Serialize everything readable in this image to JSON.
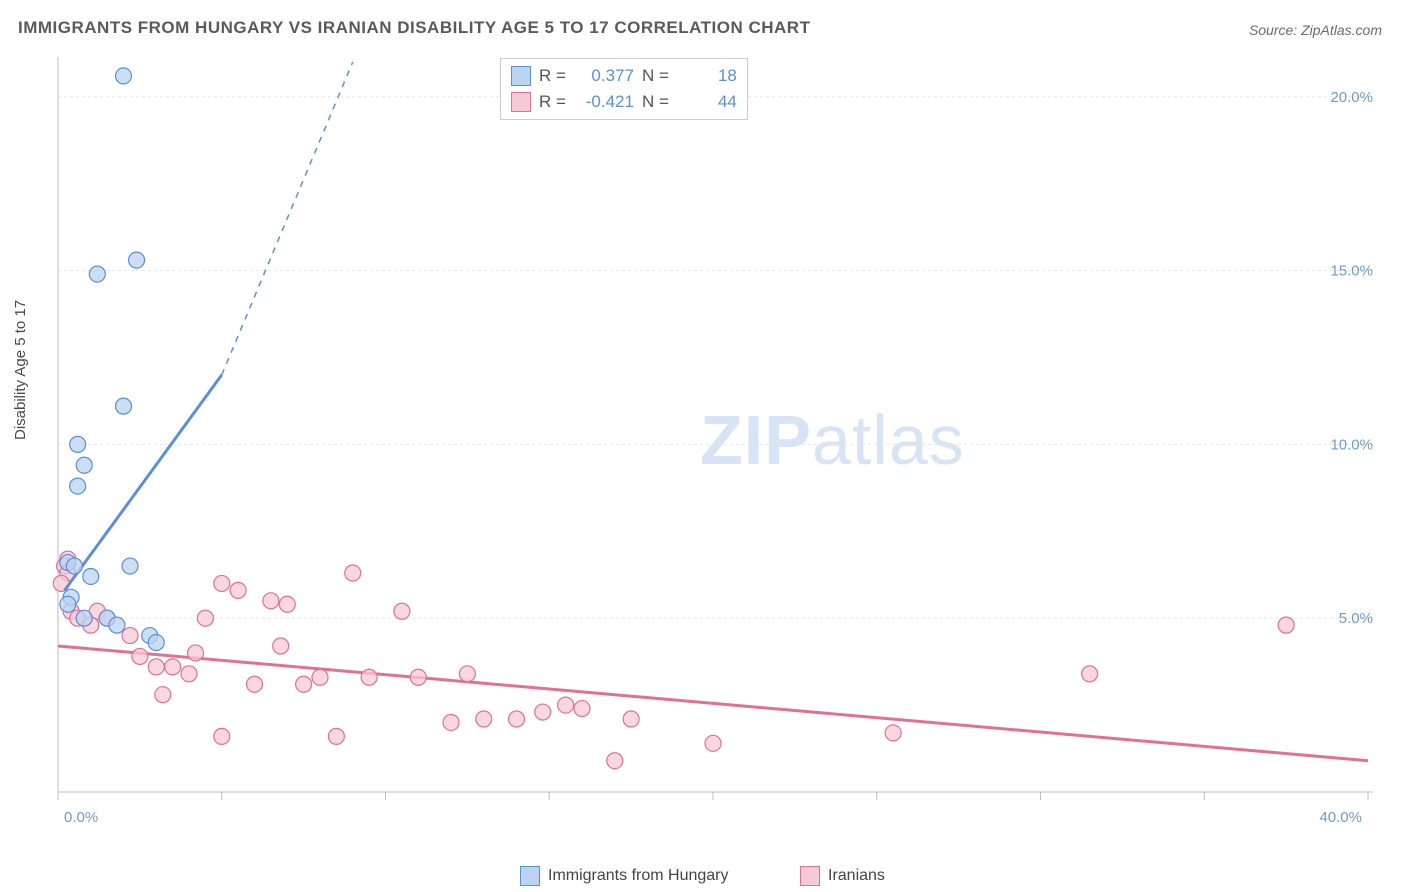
{
  "title": "IMMIGRANTS FROM HUNGARY VS IRANIAN DISABILITY AGE 5 TO 17 CORRELATION CHART",
  "source": "Source: ZipAtlas.com",
  "ylabel": "Disability Age 5 to 17",
  "watermark_bold": "ZIP",
  "watermark_light": "atlas",
  "chart": {
    "type": "scatter",
    "background_color": "#ffffff",
    "grid_color": "#e6e6e6",
    "axis_color": "#bdbdbd",
    "tick_color": "#6b9bd6",
    "xlim": [
      0,
      40
    ],
    "ylim": [
      0,
      21
    ],
    "y_ticks": [
      5,
      10,
      15,
      20
    ],
    "y_tick_labels": [
      "5.0%",
      "10.0%",
      "15.0%",
      "20.0%"
    ],
    "x_ticks": [
      0,
      5,
      10,
      15,
      20,
      25,
      30,
      35,
      40
    ],
    "x_tick_labels_shown": {
      "0": "0.0%",
      "40": "40.0%"
    },
    "marker_radius": 8,
    "marker_stroke_width": 1.2,
    "trend_stroke_width": 3,
    "legend_stats": [
      {
        "swatch_fill": "#b9d3f0",
        "swatch_stroke": "#5b8fd6",
        "r_label": "R =",
        "r": "0.377",
        "n_label": "N =",
        "n": "18"
      },
      {
        "swatch_fill": "#f7c9d6",
        "swatch_stroke": "#e36f92",
        "r_label": "R =",
        "r": "-0.421",
        "n_label": "N =",
        "n": "44"
      }
    ],
    "x_legend": [
      {
        "swatch_fill": "#b9d3f0",
        "swatch_stroke": "#5b8fd6",
        "label": "Immigrants from Hungary"
      },
      {
        "swatch_fill": "#f7c9d6",
        "swatch_stroke": "#e36f92",
        "label": "Iranians"
      }
    ],
    "series": [
      {
        "name": "hungary",
        "fill": "#b9d3f0",
        "stroke": "#5b8fd6",
        "trend": {
          "x1": 0.2,
          "y1": 5.8,
          "x2": 5.0,
          "y2": 12.0,
          "dash_x2": 9.0,
          "dash_y2": 21.0
        },
        "points": [
          [
            2.0,
            20.6
          ],
          [
            2.4,
            15.3
          ],
          [
            1.2,
            14.9
          ],
          [
            2.0,
            11.1
          ],
          [
            0.6,
            10.0
          ],
          [
            0.8,
            9.4
          ],
          [
            0.6,
            8.8
          ],
          [
            0.3,
            6.6
          ],
          [
            0.5,
            6.5
          ],
          [
            2.2,
            6.5
          ],
          [
            1.0,
            6.2
          ],
          [
            0.4,
            5.6
          ],
          [
            0.3,
            5.4
          ],
          [
            1.5,
            5.0
          ],
          [
            0.8,
            5.0
          ],
          [
            1.8,
            4.8
          ],
          [
            2.8,
            4.5
          ],
          [
            3.0,
            4.3
          ]
        ]
      },
      {
        "name": "iranians",
        "fill": "#f7c9d6",
        "stroke": "#e36f92",
        "trend": {
          "x1": 0,
          "y1": 4.2,
          "x2": 40,
          "y2": 0.9
        },
        "points": [
          [
            0.3,
            6.7
          ],
          [
            0.2,
            6.5
          ],
          [
            0.3,
            6.3
          ],
          [
            0.1,
            6.0
          ],
          [
            0.4,
            5.2
          ],
          [
            0.6,
            5.0
          ],
          [
            1.2,
            5.2
          ],
          [
            1.5,
            5.0
          ],
          [
            1.0,
            4.8
          ],
          [
            2.2,
            4.5
          ],
          [
            2.5,
            3.9
          ],
          [
            3.0,
            3.6
          ],
          [
            3.5,
            3.6
          ],
          [
            3.2,
            2.8
          ],
          [
            4.0,
            3.4
          ],
          [
            5.0,
            6.0
          ],
          [
            5.5,
            5.8
          ],
          [
            4.5,
            5.0
          ],
          [
            6.5,
            5.5
          ],
          [
            6.0,
            3.1
          ],
          [
            7.0,
            5.4
          ],
          [
            7.5,
            3.1
          ],
          [
            8.0,
            3.3
          ],
          [
            8.5,
            1.6
          ],
          [
            5.0,
            1.6
          ],
          [
            9.0,
            6.3
          ],
          [
            9.5,
            3.3
          ],
          [
            10.5,
            5.2
          ],
          [
            11.0,
            3.3
          ],
          [
            12.0,
            2.0
          ],
          [
            12.5,
            3.4
          ],
          [
            13.0,
            2.1
          ],
          [
            14.0,
            2.1
          ],
          [
            14.8,
            2.3
          ],
          [
            15.5,
            2.5
          ],
          [
            17.0,
            0.9
          ],
          [
            17.5,
            2.1
          ],
          [
            16.0,
            2.4
          ],
          [
            20.0,
            1.4
          ],
          [
            25.5,
            1.7
          ],
          [
            31.5,
            3.4
          ],
          [
            37.5,
            4.8
          ],
          [
            6.8,
            4.2
          ],
          [
            4.2,
            4.0
          ]
        ]
      }
    ]
  }
}
